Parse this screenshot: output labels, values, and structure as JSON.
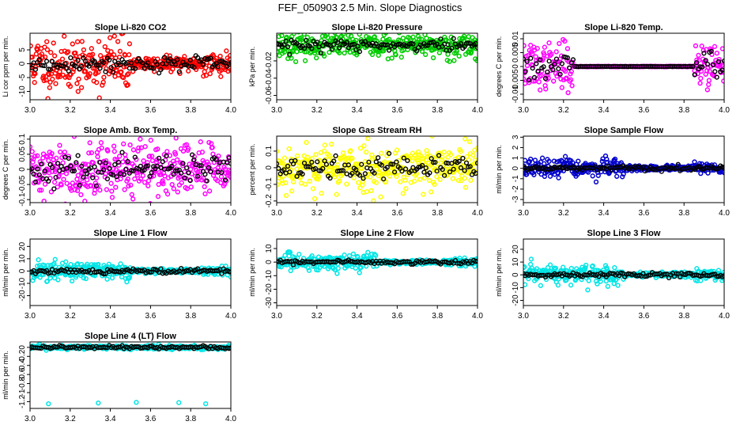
{
  "figure": {
    "title": "FEF_050903  2.5 Min. Slope Diagnostics"
  },
  "chart_data": [
    {
      "type": "scatter",
      "title": "Slope Li-820 CO2",
      "ylabel": "Li cor ppm per min.",
      "color": "#ff0000",
      "xlim": [
        3.0,
        4.0
      ],
      "ylim": [
        -13,
        11
      ],
      "xticks": [
        "3.0",
        "3.2",
        "3.4",
        "3.6",
        "3.8",
        "4.0"
      ],
      "yticks": [
        -10,
        -5,
        0,
        5
      ],
      "spread": 5,
      "mode": "early",
      "seed": 11
    },
    {
      "type": "scatter",
      "title": "Slope Li-820 Pressure",
      "ylabel": "kPa per min.",
      "color": "#00cc00",
      "xlim": [
        3.0,
        4.0
      ],
      "ylim": [
        -0.065,
        0.012
      ],
      "xticks": [
        "3.0",
        "3.2",
        "3.4",
        "3.6",
        "3.8",
        "4.0"
      ],
      "yticks": [
        -0.06,
        -0.04,
        -0.02
      ],
      "spread": 0.007,
      "mode": "flat",
      "seed": 23
    },
    {
      "type": "scatter",
      "title": "Slope Li-820 Temp.",
      "ylabel": "degrees C per min.",
      "color": "#ff00ff",
      "xlim": [
        3.0,
        4.0
      ],
      "ylim": [
        -0.012,
        0.012
      ],
      "xticks": [
        "3.0",
        "3.2",
        "3.4",
        "3.6",
        "3.8",
        "4.0"
      ],
      "yticks": [
        -0.01,
        -0.005,
        0.0,
        0.005,
        0.01
      ],
      "spread": 0.004,
      "mode": "edges",
      "seed": 37
    },
    {
      "type": "scatter",
      "title": "Slope Amb. Box Temp.",
      "ylabel": "degrees C per min.",
      "color": "#ff00ff",
      "xlim": [
        3.0,
        4.0
      ],
      "ylim": [
        -0.11,
        0.11
      ],
      "xticks": [
        "3.0",
        "3.2",
        "3.4",
        "3.6",
        "3.8",
        "4.0"
      ],
      "yticks": [
        -0.1,
        -0.05,
        0.0,
        0.05,
        0.1
      ],
      "spread": 0.045,
      "mode": "flat",
      "seed": 41
    },
    {
      "type": "scatter",
      "title": "Slope Gas Stream RH",
      "ylabel": "percent per min.",
      "color": "#ffff00",
      "xlim": [
        3.0,
        4.0
      ],
      "ylim": [
        -0.21,
        0.19
      ],
      "xticks": [
        "3.0",
        "3.2",
        "3.4",
        "3.6",
        "3.8",
        "4.0"
      ],
      "yticks": [
        -0.2,
        -0.1,
        0.0,
        0.1
      ],
      "spread": 0.07,
      "mode": "flat",
      "seed": 53
    },
    {
      "type": "scatter",
      "title": "Slope Sample Flow",
      "ylabel": "ml/min per min.",
      "color": "#0000cc",
      "xlim": [
        3.0,
        4.0
      ],
      "ylim": [
        -3.3,
        3.1
      ],
      "xticks": [
        "3.0",
        "3.2",
        "3.4",
        "3.6",
        "3.8",
        "4.0"
      ],
      "yticks": [
        -3,
        -2,
        -1,
        0,
        1,
        2,
        3
      ],
      "spread": 0.45,
      "mode": "early",
      "seed": 67
    },
    {
      "type": "scatter",
      "title": "Slope Line 1 Flow",
      "ylabel": "ml/min per min.",
      "color": "#00e5e5",
      "xlim": [
        3.0,
        4.0
      ],
      "ylim": [
        -28,
        26
      ],
      "xticks": [
        "3.0",
        "3.2",
        "3.4",
        "3.6",
        "3.8",
        "4.0"
      ],
      "yticks": [
        -20,
        -10,
        0,
        10,
        20
      ],
      "spread": 4,
      "mode": "early",
      "seed": 71
    },
    {
      "type": "scatter",
      "title": "Slope Line 2 Flow",
      "ylabel": "ml/min per min.",
      "color": "#00e5e5",
      "xlim": [
        3.0,
        4.0
      ],
      "ylim": [
        -32,
        17
      ],
      "xticks": [
        "3.0",
        "3.2",
        "3.4",
        "3.6",
        "3.8",
        "4.0"
      ],
      "yticks": [
        -30,
        -20,
        -10,
        0,
        10
      ],
      "spread": 3,
      "mode": "early",
      "seed": 83
    },
    {
      "type": "scatter",
      "title": "Slope Line 3 Flow",
      "ylabel": "ml/min per min.",
      "color": "#00e5e5",
      "xlim": [
        3.0,
        4.0
      ],
      "ylim": [
        -24,
        28
      ],
      "xticks": [
        "3.0",
        "3.2",
        "3.4",
        "3.6",
        "3.8",
        "4.0"
      ],
      "yticks": [
        -20,
        -10,
        0,
        10,
        20
      ],
      "spread": 4,
      "mode": "early",
      "seed": 97
    },
    {
      "type": "scatter",
      "title": "Slope Line 4 (LT) Flow",
      "ylabel": "ml/min per min.",
      "color": "#00e5e5",
      "xlim": [
        3.0,
        4.0
      ],
      "ylim": [
        -1.35,
        0.12
      ],
      "xticks": [
        "3.0",
        "3.2",
        "3.4",
        "3.6",
        "3.8",
        "4.0"
      ],
      "yticks": [
        -1.2,
        -1.0,
        -0.8,
        -0.6,
        -0.4,
        -0.2,
        0.0
      ],
      "spread": 0.02,
      "mode": "flat",
      "seed": 101
    }
  ]
}
